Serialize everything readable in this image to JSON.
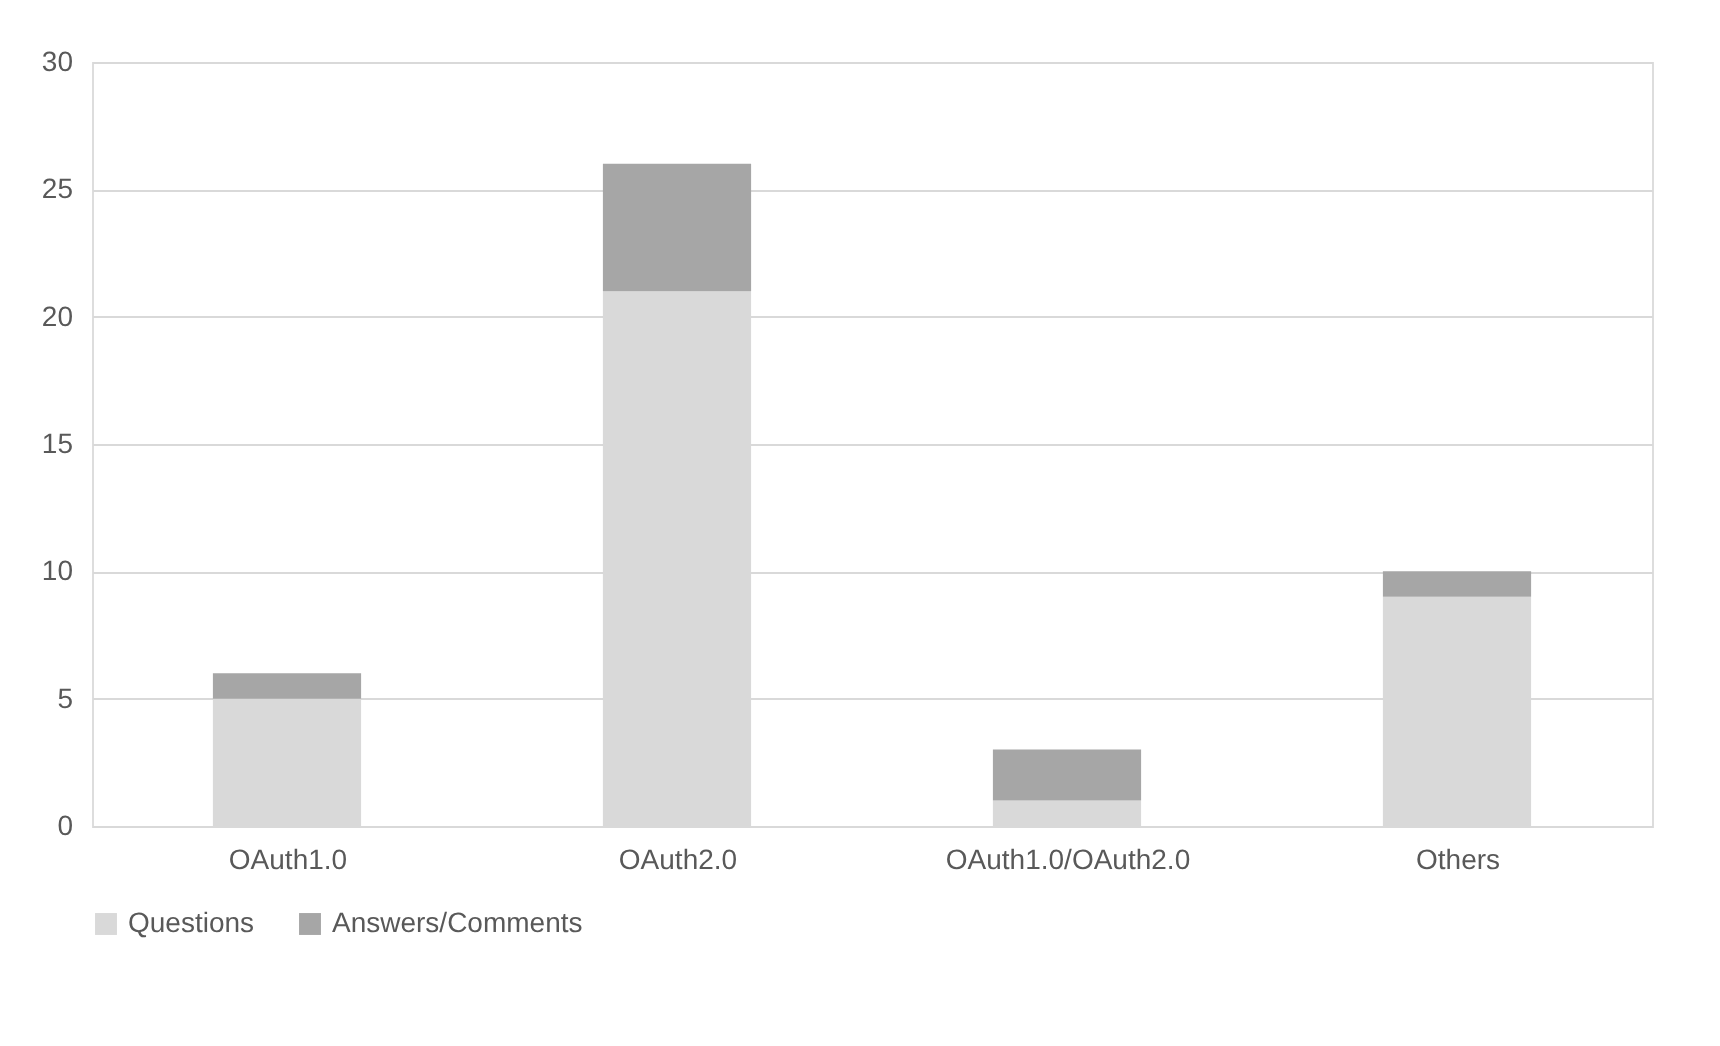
{
  "chart_data": {
    "type": "bar",
    "stacked": true,
    "categories": [
      "OAuth1.0",
      "OAuth2.0",
      "OAuth1.0/OAuth2.0",
      "Others"
    ],
    "series": [
      {
        "name": "Questions",
        "color": "#d9d9d9",
        "values": [
          5,
          21,
          1,
          9
        ]
      },
      {
        "name": "Answers/Comments",
        "color": "#a6a6a6",
        "values": [
          1,
          5,
          2,
          1
        ]
      }
    ],
    "ylim": [
      0,
      30
    ],
    "yticks": [
      0,
      5,
      10,
      15,
      20,
      25,
      30
    ],
    "grid": "y",
    "legend": "bottom"
  }
}
